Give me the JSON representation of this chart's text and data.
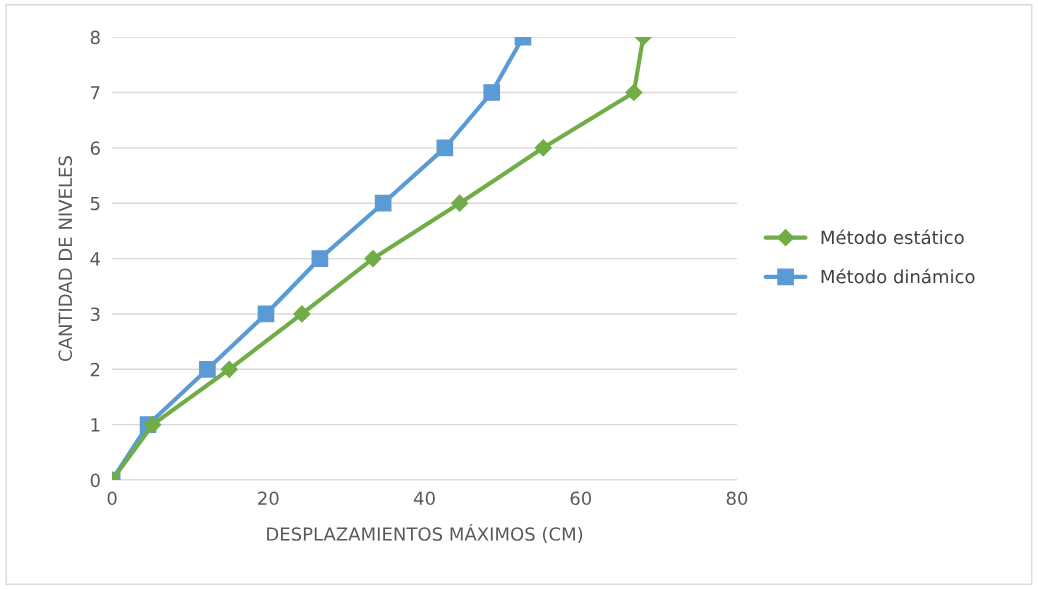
{
  "chart_data": {
    "type": "line",
    "xlabel": "DESPLAZAMIENTOS MÁXIMOS (CM)",
    "ylabel": "CANTIDAD DE NIVELES",
    "xlim": [
      0,
      80
    ],
    "xticks": [
      0,
      20,
      40,
      60,
      80
    ],
    "ylim": [
      0,
      8
    ],
    "yticks": [
      0,
      1,
      2,
      3,
      4,
      5,
      6,
      7,
      8
    ],
    "grid": "y",
    "legend": "right",
    "line_style": "solid",
    "series": [
      {
        "name": "Método estático",
        "color": "#70ad47",
        "marker": "diamond",
        "x": [
          0,
          5.2,
          15.0,
          24.3,
          33.4,
          44.5,
          55.2,
          66.8,
          68.0
        ],
        "values": [
          0,
          1,
          2,
          3,
          4,
          5,
          6,
          7,
          8
        ]
      },
      {
        "name": "Método dinámico",
        "color": "#5b9bd5",
        "marker": "square",
        "x": [
          0,
          4.6,
          12.2,
          19.7,
          26.6,
          34.7,
          42.6,
          48.6,
          52.6
        ],
        "values": [
          0,
          1,
          2,
          3,
          4,
          5,
          6,
          7,
          8
        ]
      }
    ]
  }
}
